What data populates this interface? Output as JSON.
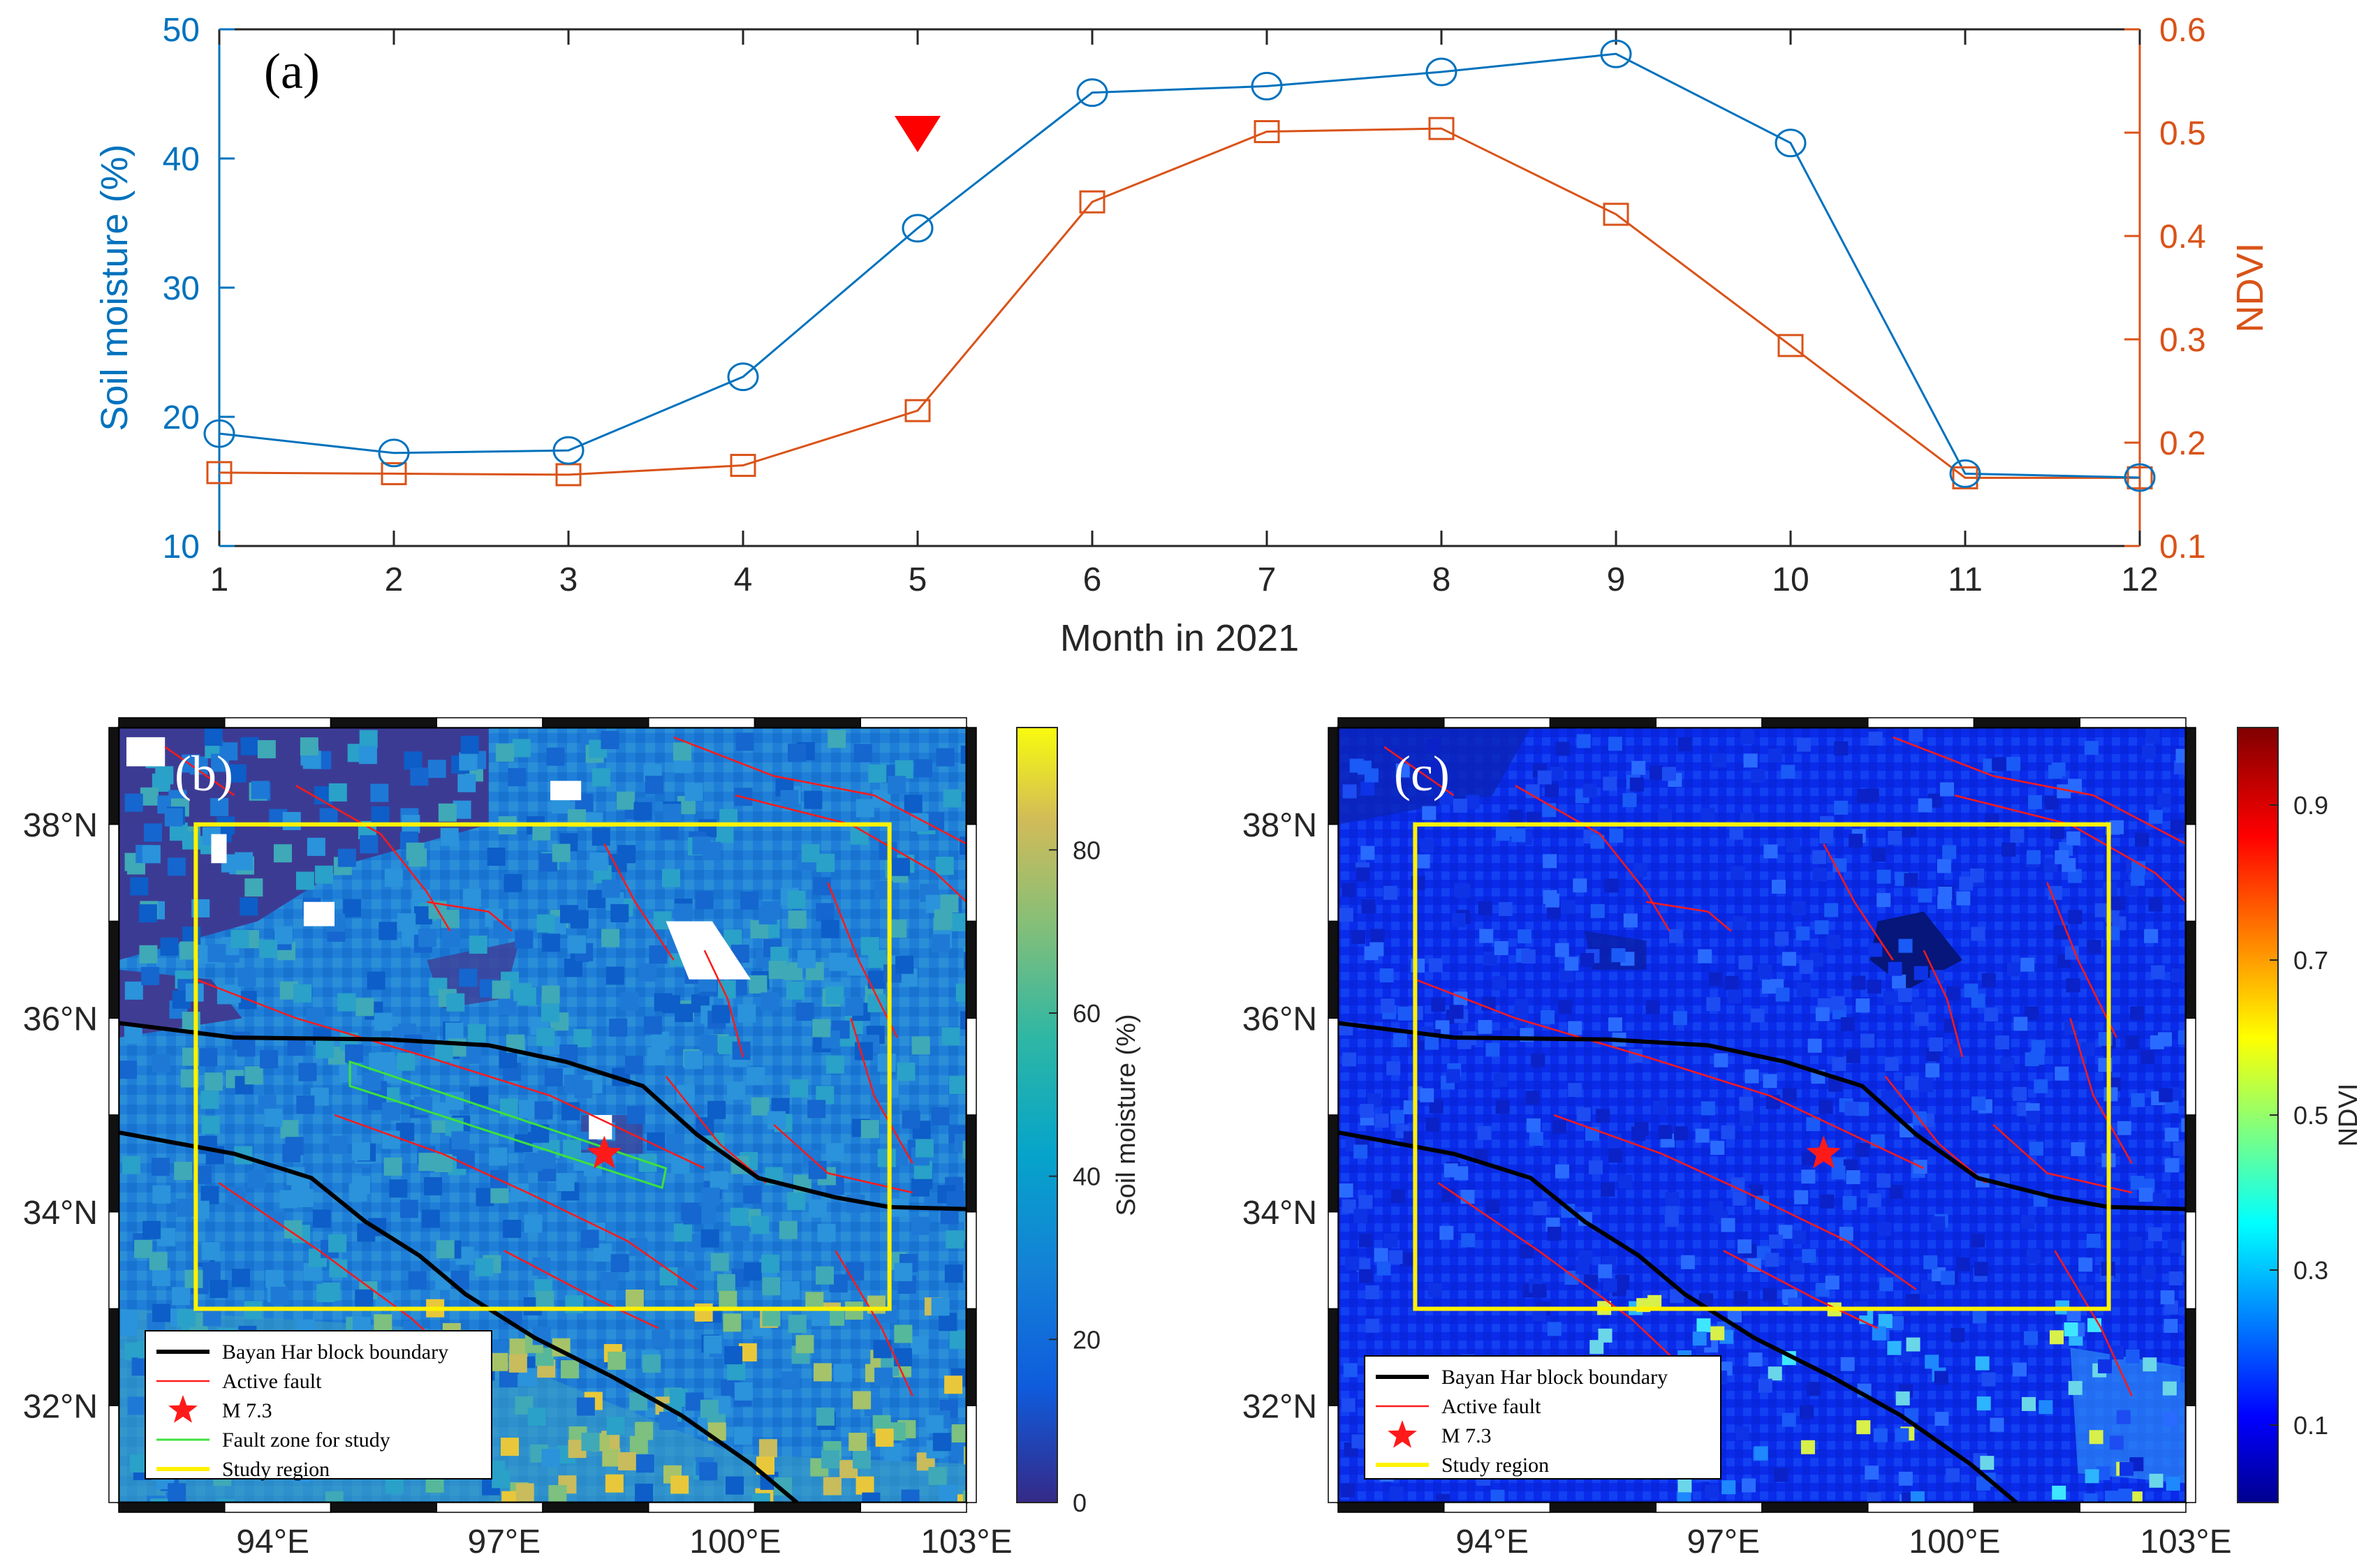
{
  "chart_data": [
    {
      "type": "line",
      "panel_label": "(a)",
      "xlabel": "Month in 2021",
      "x": [
        1,
        2,
        3,
        4,
        5,
        6,
        7,
        8,
        9,
        10,
        11,
        12
      ],
      "xticks": [
        "1",
        "2",
        "3",
        "4",
        "5",
        "6",
        "7",
        "8",
        "9",
        "10",
        "11",
        "12"
      ],
      "series": [
        {
          "name": "Soil moisture",
          "axis": "left",
          "marker": "circle",
          "color": "#0072BD",
          "values": [
            18.7,
            17.2,
            17.4,
            23.1,
            34.6,
            45.1,
            45.6,
            46.7,
            48.1,
            41.2,
            15.6,
            15.3
          ]
        },
        {
          "name": "NDVI",
          "axis": "right",
          "marker": "square",
          "color": "#D95319",
          "values": [
            0.171,
            0.17,
            0.169,
            0.178,
            0.231,
            0.433,
            0.501,
            0.504,
            0.421,
            0.294,
            0.166,
            0.166
          ]
        }
      ],
      "ylabel_left": "Soil moisture (%)",
      "ylim_left": [
        10,
        50
      ],
      "yticks_left": [
        "10",
        "20",
        "30",
        "40",
        "50"
      ],
      "ylabel_right": "NDVI",
      "ylim_right": [
        0.1,
        0.6
      ],
      "yticks_right": [
        "0.1",
        "0.2",
        "0.3",
        "0.4",
        "0.5",
        "0.6"
      ],
      "event_marker": {
        "month": 5,
        "symbol": "down-triangle",
        "color": "#FF0000"
      }
    },
    {
      "type": "heatmap",
      "panel_label": "(b)",
      "variable": "Soil moisture",
      "xticks": [
        "94°E",
        "97°E",
        "100°E",
        "103°E"
      ],
      "xtick_values": [
        94,
        97,
        100,
        103
      ],
      "yticks": [
        "32°N",
        "34°N",
        "36°N",
        "38°N"
      ],
      "ytick_values": [
        32,
        34,
        36,
        38
      ],
      "xlim": [
        92,
        103
      ],
      "ylim": [
        31,
        39
      ],
      "colorbar": {
        "label": "Soil moisture (%)",
        "ticks": [
          "0",
          "20",
          "40",
          "60",
          "80"
        ],
        "range": [
          0,
          95
        ]
      },
      "study_region": {
        "lon": [
          93,
          102
        ],
        "lat": [
          33,
          38
        ]
      },
      "epicenter": {
        "lon": 98.3,
        "lat": 34.6,
        "label": "M 7.3"
      },
      "legend": [
        "Bayan Har block boundary",
        "Active fault",
        "M 7.3",
        "Fault zone for study",
        "Study region"
      ]
    },
    {
      "type": "heatmap",
      "panel_label": "(c)",
      "variable": "NDVI",
      "xticks": [
        "94°E",
        "97°E",
        "100°E",
        "103°E"
      ],
      "xtick_values": [
        94,
        97,
        100,
        103
      ],
      "yticks": [
        "32°N",
        "34°N",
        "36°N",
        "38°N"
      ],
      "ytick_values": [
        32,
        34,
        36,
        38
      ],
      "xlim": [
        92,
        103
      ],
      "ylim": [
        31,
        39
      ],
      "colorbar": {
        "label": "NDVI",
        "ticks": [
          "0.1",
          "0.3",
          "0.5",
          "0.7",
          "0.9"
        ],
        "range": [
          0,
          1
        ]
      },
      "study_region": {
        "lon": [
          93,
          102
        ],
        "lat": [
          33,
          38
        ]
      },
      "epicenter": {
        "lon": 98.3,
        "lat": 34.6,
        "label": "M 7.3"
      },
      "legend": [
        "Bayan Har block boundary",
        "Active fault",
        "M 7.3",
        "Study region"
      ]
    }
  ]
}
